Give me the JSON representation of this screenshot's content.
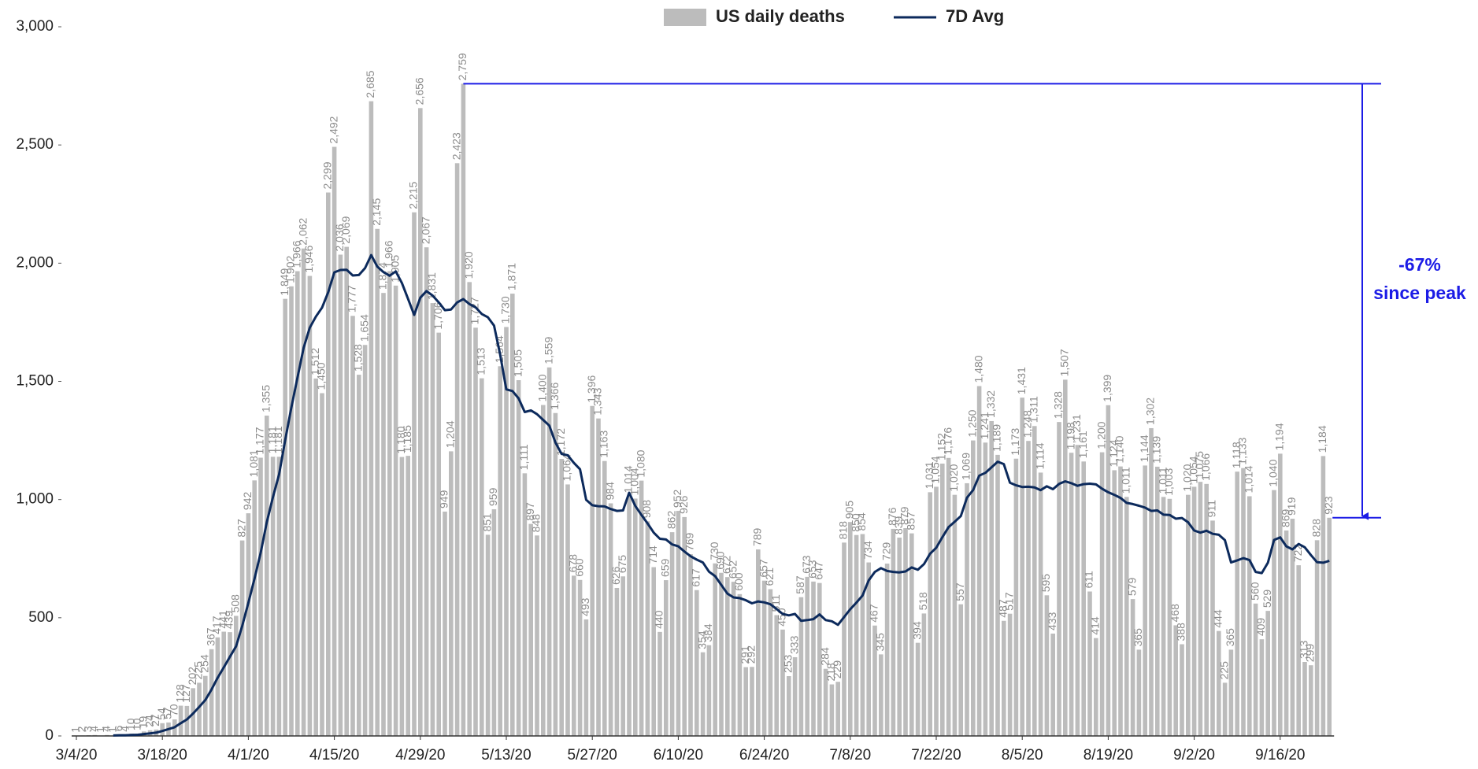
{
  "chart_data": {
    "type": "bar",
    "categories": [
      "3/4/20",
      null,
      null,
      null,
      null,
      null,
      null,
      null,
      null,
      null,
      null,
      null,
      null,
      null,
      "3/18/20",
      null,
      null,
      null,
      null,
      null,
      null,
      null,
      null,
      null,
      null,
      null,
      null,
      null,
      "4/1/20",
      null,
      null,
      null,
      null,
      null,
      null,
      null,
      null,
      null,
      null,
      null,
      null,
      null,
      "4/15/20",
      null,
      null,
      null,
      null,
      null,
      null,
      null,
      null,
      null,
      null,
      null,
      null,
      null,
      "4/29/20",
      null,
      null,
      null,
      null,
      null,
      null,
      null,
      null,
      null,
      null,
      null,
      null,
      null,
      "5/13/20",
      null,
      null,
      null,
      null,
      null,
      null,
      null,
      null,
      null,
      null,
      null,
      null,
      null,
      "5/27/20",
      null,
      null,
      null,
      null,
      null,
      null,
      null,
      null,
      null,
      null,
      null,
      null,
      null,
      "6/10/20",
      null,
      null,
      null,
      null,
      null,
      null,
      null,
      null,
      null,
      null,
      null,
      null,
      null,
      "6/24/20",
      null,
      null,
      null,
      null,
      null,
      null,
      null,
      null,
      null,
      null,
      null,
      null,
      null,
      "7/8/20",
      null,
      null,
      null,
      null,
      null,
      null,
      null,
      null,
      null,
      null,
      null,
      null,
      null,
      "7/22/20",
      null,
      null,
      null,
      null,
      null,
      null,
      null,
      null,
      null,
      null,
      null,
      null,
      null,
      "8/5/20",
      null,
      null,
      null,
      null,
      null,
      null,
      null,
      null,
      null,
      null,
      null,
      null,
      null,
      "8/19/20",
      null,
      null,
      null,
      null,
      null,
      null,
      null,
      null,
      null,
      null,
      null,
      null,
      null,
      "9/2/20",
      null,
      null,
      null,
      null,
      null,
      null,
      null,
      null,
      null,
      null,
      null,
      null,
      null,
      "9/16/20",
      null,
      null,
      null,
      null,
      null,
      null,
      null,
      null
    ],
    "series": [
      {
        "name": "US daily deaths",
        "type": "bar",
        "color": "#bcbcbc",
        "values": [
          1,
          2,
          3,
          4,
          1,
          4,
          1,
          6,
          4,
          10,
          10,
          19,
          24,
          27,
          54,
          57,
          70,
          128,
          127,
          202,
          225,
          254,
          367,
          417,
          441,
          439,
          508,
          827,
          942,
          1081,
          1177,
          1355,
          1181,
          1181,
          1849,
          1902,
          1966,
          2062,
          1946,
          1512,
          1450,
          2299,
          2492,
          2036,
          2069,
          1777,
          1528,
          1654,
          2685,
          2145,
          1874,
          1966,
          1905,
          1180,
          1185,
          2215,
          2656,
          2067,
          1831,
          1706,
          949,
          1204,
          2423,
          2759,
          1920,
          1727,
          1513,
          851,
          959,
          1564,
          1730,
          1871,
          1505,
          1111,
          897,
          848,
          1400,
          1559,
          1366,
          1172,
          1064,
          678,
          660,
          493,
          1396,
          1343,
          1163,
          984,
          626,
          675,
          1014,
          1004,
          1080,
          908,
          714,
          440,
          659,
          862,
          952,
          926,
          769,
          617,
          354,
          384,
          730,
          690,
          672,
          652,
          600,
          291,
          292,
          789,
          657,
          621,
          511,
          450,
          253,
          333,
          587,
          673,
          653,
          647,
          284,
          218,
          229,
          818,
          905,
          850,
          854,
          734,
          467,
          345,
          729,
          876,
          839,
          879,
          857,
          394,
          518,
          1031,
          1054,
          1152,
          1176,
          1020,
          557,
          1069,
          1250,
          1480,
          1241,
          1332,
          1189,
          487,
          517,
          1173,
          1431,
          1248,
          1311,
          1114,
          595,
          433,
          1328,
          1507,
          1198,
          1231,
          1161,
          611,
          414,
          1200,
          1399,
          1124,
          1140,
          1011,
          579,
          365,
          1144,
          1302,
          1139,
          1011,
          1003,
          468,
          388,
          1020,
          1054,
          1075,
          1066,
          911,
          444,
          225,
          365,
          1118,
          1133,
          1014,
          560,
          409,
          529,
          1040,
          1194,
          869,
          919,
          722,
          313,
          299,
          828,
          1184,
          923
        ],
        "value_labels": [
          "1",
          "2",
          "3",
          "4",
          "1",
          "4",
          "1",
          "6",
          "4",
          "10",
          "10",
          "19",
          "24",
          "27",
          "54",
          "57",
          "70",
          "128",
          "127",
          "202",
          "225",
          "254",
          "367",
          "417",
          "441",
          "439",
          "508",
          "827",
          "942",
          "1,081",
          "1,177",
          "1,355",
          "1,181",
          "1,181",
          "1,849",
          "1,902",
          "1,966",
          "2,062",
          "1,946",
          "1,512",
          "1,450",
          "2,299",
          "2,492",
          "2,036",
          "2,069",
          "1,777",
          "1,528",
          "1,654",
          "2,685",
          "2,145",
          "1,874",
          "1,966",
          "1,905",
          "1,180",
          "1,185",
          "2,215",
          "2,656",
          "2,067",
          "1,831",
          "1,706",
          "949",
          "1,204",
          "2,423",
          "2,759",
          "1,920",
          "1,727",
          "1,513",
          "851",
          "959",
          "1,564",
          "1,730",
          "1,871",
          "1,505",
          "1,111",
          "897",
          "848",
          "1,400",
          "1,559",
          "1,366",
          "1,172",
          "1,064",
          "678",
          "660",
          "493",
          "1,396",
          "1,343",
          "1,163",
          "984",
          "626",
          "675",
          "1,014",
          "1,004",
          "1,080",
          "908",
          "714",
          "440",
          "659",
          "862",
          "952",
          "926",
          "769",
          "617",
          "354",
          "384",
          "730",
          "690",
          "672",
          "652",
          "600",
          "291",
          "292",
          "789",
          "657",
          "621",
          "511",
          "450",
          "253",
          "333",
          "587",
          "673",
          "653",
          "647",
          "284",
          "218",
          "229",
          "818",
          "905",
          "850",
          "854",
          "734",
          "467",
          "345",
          "729",
          "876",
          "839",
          "879",
          "857",
          "394",
          "518",
          "1,031",
          "1,054",
          "1,152",
          "1,176",
          "1,020",
          "557",
          "1,069",
          "1,250",
          "1,480",
          "1,241",
          "1,332",
          "1,189",
          "487",
          "517",
          "1,173",
          "1,431",
          "1,248",
          "1,311",
          "1,114",
          "595",
          "433",
          "1,328",
          "1,507",
          "1,198",
          "1,231",
          "1,161",
          "611",
          "414",
          "1,200",
          "1,399",
          "1,124",
          "1,140",
          "1,011",
          "579",
          "365",
          "1,144",
          "1,302",
          "1,139",
          "1,011",
          "1,003",
          "468",
          "388",
          "1,020",
          "1,054",
          "1,075",
          "1,066",
          "911",
          "444",
          "225",
          "365",
          "1,118",
          "1,133",
          "1,014",
          "560",
          "409",
          "529",
          "1,040",
          "1,194",
          "869",
          "919",
          "722",
          "313",
          "299",
          "828",
          "1,184",
          "923"
        ]
      },
      {
        "name": "7D Avg",
        "type": "line",
        "color": "#0c2a5c",
        "values": [
          null,
          null,
          null,
          null,
          null,
          null,
          2,
          3,
          3,
          4,
          5,
          8,
          11,
          14,
          21,
          29,
          37,
          54,
          70,
          95,
          123,
          152,
          196,
          246,
          290,
          335,
          379,
          465,
          563,
          665,
          774,
          904,
          1010,
          1106,
          1252,
          1389,
          1516,
          1642,
          1727,
          1774,
          1812,
          1877,
          1961,
          1971,
          1972,
          1948,
          1950,
          1979,
          2034,
          1985,
          1962,
          1947,
          1965,
          1916,
          1849,
          1781,
          1854,
          1882,
          1863,
          1834,
          1801,
          1804,
          1834,
          1848,
          1827,
          1813,
          1785,
          1771,
          1736,
          1613,
          1466,
          1459,
          1428,
          1370,
          1377,
          1361,
          1337,
          1313,
          1241,
          1193,
          1187,
          1155,
          1128,
          999,
          976,
          972,
          971,
          960,
          952,
          954,
          1029,
          973,
          935,
          899,
          860,
          834,
          831,
          810,
          802,
          780,
          760,
          746,
          734,
          695,
          676,
          639,
          602,
          586,
          583,
          574,
          561,
          569,
          565,
          557,
          537,
          516,
          510,
          516,
          487,
          490,
          494,
          514,
          490,
          485,
          470,
          503,
          536,
          564,
          594,
          658,
          694,
          710,
          698,
          694,
          692,
          696,
          713,
          703,
          727,
          771,
          796,
          841,
          883,
          906,
          930,
          1008,
          1040,
          1101,
          1113,
          1136,
          1160,
          1150,
          1071,
          1060,
          1053,
          1054,
          1051,
          1040,
          1056,
          1044,
          1066,
          1077,
          1069,
          1058,
          1065,
          1067,
          1064,
          1046,
          1031,
          1020,
          1007,
          986,
          981,
          974,
          966,
          952,
          954,
          936,
          935,
          919,
          922,
          904,
          869,
          860,
          868,
          855,
          851,
          828,
          734,
          743,
          752,
          744,
          694,
          689,
          733,
          829,
          840,
          802,
          789,
          812,
          798,
          765,
          735,
          733,
          741
        ]
      }
    ],
    "ylim": [
      0,
      3000
    ],
    "yticks": [
      0,
      500,
      {
        "value": 1000,
        "label": "1,000"
      },
      {
        "value": 1500,
        "label": "1,500"
      },
      {
        "value": 2000,
        "label": "2,000"
      },
      {
        "value": 2500,
        "label": "2,500"
      },
      {
        "value": 3000,
        "label": "3,000"
      }
    ],
    "annotation": {
      "text": "-67%",
      "subtext": "since peak",
      "color": "#1c1ce6"
    }
  }
}
